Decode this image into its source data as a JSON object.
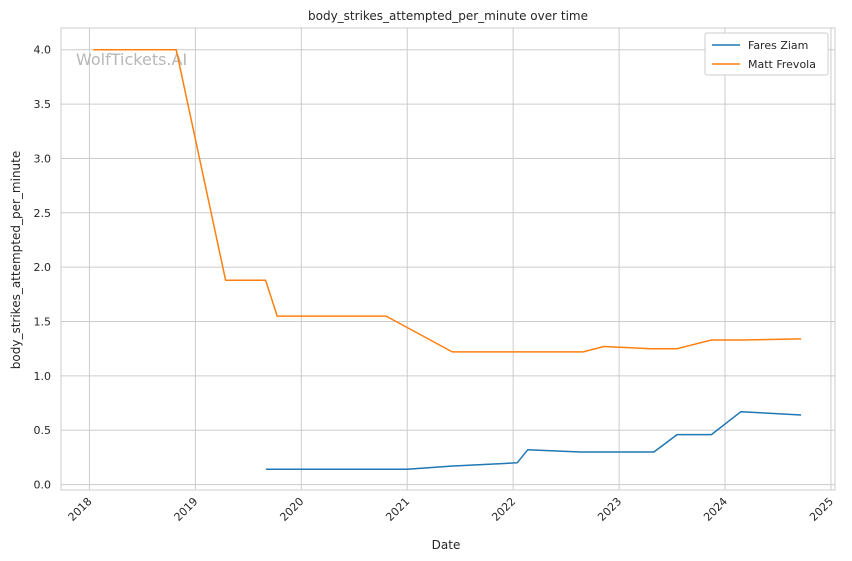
{
  "chart_data": {
    "type": "line",
    "title": "body_strikes_attempted_per_minute over time",
    "xlabel": "Date",
    "ylabel": "body_strikes_attempted_per_minute",
    "watermark": "WolfTickets.AI",
    "ylim": [
      -0.05,
      4.2
    ],
    "xlim": [
      "2017-09-25",
      "2025-01-15"
    ],
    "y_ticks": [
      "0.0",
      "0.5",
      "1.0",
      "1.5",
      "2.0",
      "2.5",
      "3.0",
      "3.5",
      "4.0"
    ],
    "x_ticks": [
      "2018",
      "2019",
      "2020",
      "2021",
      "2022",
      "2023",
      "2024",
      "2025"
    ],
    "grid": true,
    "legend_position": "top-right",
    "series": [
      {
        "name": "Fares Ziam",
        "color": "#1f77b4",
        "points": [
          {
            "x": "2019-09-01",
            "y": 0.14
          },
          {
            "x": "2021-01-01",
            "y": 0.14
          },
          {
            "x": "2021-06-01",
            "y": 0.17
          },
          {
            "x": "2022-01-15",
            "y": 0.2
          },
          {
            "x": "2022-02-20",
            "y": 0.32
          },
          {
            "x": "2022-08-20",
            "y": 0.3
          },
          {
            "x": "2023-05-01",
            "y": 0.3
          },
          {
            "x": "2023-07-20",
            "y": 0.46
          },
          {
            "x": "2023-11-15",
            "y": 0.46
          },
          {
            "x": "2024-02-25",
            "y": 0.67
          },
          {
            "x": "2024-09-20",
            "y": 0.64
          }
        ]
      },
      {
        "name": "Matt Frevola",
        "color": "#ff7f0e",
        "points": [
          {
            "x": "2018-01-15",
            "y": 4.0
          },
          {
            "x": "2018-10-27",
            "y": 4.0
          },
          {
            "x": "2019-04-15",
            "y": 1.88
          },
          {
            "x": "2019-08-31",
            "y": 1.88
          },
          {
            "x": "2019-10-10",
            "y": 1.55
          },
          {
            "x": "2020-10-20",
            "y": 1.55
          },
          {
            "x": "2021-06-05",
            "y": 1.22
          },
          {
            "x": "2022-08-30",
            "y": 1.22
          },
          {
            "x": "2022-11-10",
            "y": 1.27
          },
          {
            "x": "2023-04-20",
            "y": 1.25
          },
          {
            "x": "2023-07-20",
            "y": 1.25
          },
          {
            "x": "2023-11-15",
            "y": 1.33
          },
          {
            "x": "2024-02-25",
            "y": 1.33
          },
          {
            "x": "2024-09-20",
            "y": 1.34
          }
        ]
      }
    ]
  }
}
